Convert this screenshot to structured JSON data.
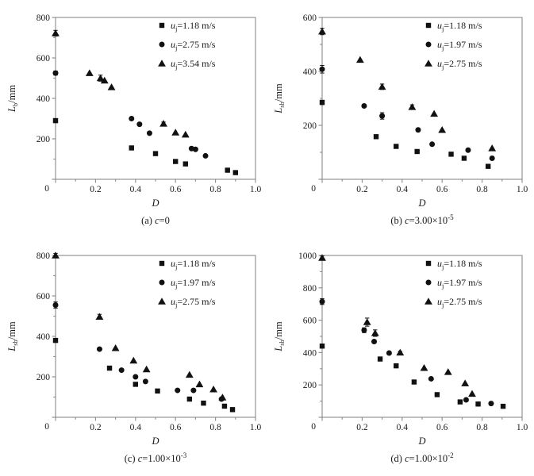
{
  "colors": {
    "background": "#ffffff",
    "axis": "#8a8a8a",
    "text": "#1a1a1a",
    "marker": "#111111"
  },
  "chart_data": [
    {
      "id": "a",
      "type": "scatter",
      "caption_label": "(a) ",
      "caption_var": "c",
      "caption_main": "=0",
      "caption_exp": "",
      "xlabel": "D",
      "ylabel": {
        "var": "L",
        "sub": "b",
        "unit": "/mm"
      },
      "xlim": [
        0,
        1.0
      ],
      "ylim": [
        0,
        800
      ],
      "xticks": [
        0,
        0.2,
        0.4,
        0.6,
        0.8,
        1.0
      ],
      "xtick_labels": [
        "",
        "0.2",
        "0.4",
        "0.6",
        "0.8",
        "1.0"
      ],
      "yticks": [
        0,
        200,
        400,
        600,
        800
      ],
      "ytick_labels": [
        "",
        "200",
        "400",
        "600",
        "800"
      ],
      "origin_label": "0",
      "legend_position": "top-right",
      "grid": false,
      "series": [
        {
          "marker": "square",
          "label_var": "u",
          "label_sub": "j",
          "label_value": "=1.18 m/s",
          "points": [
            [
              0,
              290,
              10
            ],
            [
              0.38,
              155,
              8
            ],
            [
              0.5,
              127
            ],
            [
              0.6,
              88
            ],
            [
              0.65,
              76
            ],
            [
              0.86,
              45
            ],
            [
              0.9,
              33
            ]
          ]
        },
        {
          "marker": "circle",
          "label_var": "u",
          "label_sub": "j",
          "label_value": "=2.75 m/s",
          "points": [
            [
              0,
              525,
              10
            ],
            [
              0.38,
              300
            ],
            [
              0.42,
              272
            ],
            [
              0.47,
              228
            ],
            [
              0.68,
              152
            ],
            [
              0.7,
              148
            ],
            [
              0.75,
              116
            ]
          ]
        },
        {
          "marker": "triangle",
          "label_var": "u",
          "label_sub": "j",
          "label_value": "=3.54 m/s",
          "points": [
            [
              0,
              722,
              14
            ],
            [
              0.17,
              525
            ],
            [
              0.225,
              500,
              15
            ],
            [
              0.245,
              488
            ],
            [
              0.28,
              455
            ],
            [
              0.54,
              275,
              8
            ],
            [
              0.6,
              231
            ],
            [
              0.65,
              221
            ]
          ]
        }
      ]
    },
    {
      "id": "b",
      "type": "scatter",
      "caption_label": "(b) ",
      "caption_var": "c",
      "caption_main": "=3.00×10",
      "caption_exp": "-5",
      "xlabel": "D",
      "ylabel": {
        "var": "L",
        "sub": "sb",
        "unit": "/mm"
      },
      "xlim": [
        0,
        1.0
      ],
      "ylim": [
        0,
        600
      ],
      "xticks": [
        0,
        0.2,
        0.4,
        0.6,
        0.8,
        1.0
      ],
      "xtick_labels": [
        "",
        "0.2",
        "0.4",
        "0.6",
        "0.8",
        "1.0"
      ],
      "yticks": [
        0,
        200,
        400,
        600
      ],
      "ytick_labels": [
        "",
        "200",
        "400",
        "600"
      ],
      "origin_label": "0",
      "legend_position": "top-right",
      "grid": false,
      "series": [
        {
          "marker": "square",
          "label_var": "u",
          "label_sub": "j",
          "label_value": "=1.18 m/s",
          "points": [
            [
              0,
              285,
              8
            ],
            [
              0.27,
              158
            ],
            [
              0.37,
              122
            ],
            [
              0.475,
              103
            ],
            [
              0.645,
              93
            ],
            [
              0.71,
              78
            ],
            [
              0.83,
              48
            ]
          ]
        },
        {
          "marker": "circle",
          "label_var": "u",
          "label_sub": "j",
          "label_value": "=1.97 m/s",
          "points": [
            [
              0,
              408,
              14
            ],
            [
              0.21,
              272
            ],
            [
              0.3,
              235,
              12
            ],
            [
              0.48,
              183
            ],
            [
              0.55,
              130
            ],
            [
              0.73,
              108
            ],
            [
              0.85,
              78
            ]
          ]
        },
        {
          "marker": "triangle",
          "label_var": "u",
          "label_sub": "j",
          "label_value": "=2.75 m/s",
          "points": [
            [
              0,
              548,
              12
            ],
            [
              0.19,
              443
            ],
            [
              0.3,
              343,
              10
            ],
            [
              0.45,
              268,
              8
            ],
            [
              0.56,
              243
            ],
            [
              0.6,
              183
            ],
            [
              0.85,
              115
            ]
          ]
        }
      ]
    },
    {
      "id": "c",
      "type": "scatter",
      "caption_label": "(c) ",
      "caption_var": "c",
      "caption_main": "=1.00×10",
      "caption_exp": "-3",
      "xlabel": "D",
      "ylabel": {
        "var": "L",
        "sub": "sb",
        "unit": "/mm"
      },
      "xlim": [
        0,
        1.0
      ],
      "ylim": [
        0,
        800
      ],
      "xticks": [
        0,
        0.2,
        0.4,
        0.6,
        0.8,
        1.0
      ],
      "xtick_labels": [
        "",
        "0.2",
        "0.4",
        "0.6",
        "0.8",
        "1.0"
      ],
      "yticks": [
        0,
        200,
        400,
        600,
        800
      ],
      "ytick_labels": [
        "",
        "200",
        "400",
        "600",
        "800"
      ],
      "origin_label": "0",
      "legend_position": "top-right",
      "grid": false,
      "series": [
        {
          "marker": "square",
          "label_var": "u",
          "label_sub": "j",
          "label_value": "=1.18 m/s",
          "points": [
            [
              0,
              380,
              8
            ],
            [
              0.27,
              243
            ],
            [
              0.4,
              163
            ],
            [
              0.51,
              130
            ],
            [
              0.67,
              90
            ],
            [
              0.74,
              70
            ],
            [
              0.845,
              55
            ],
            [
              0.885,
              38
            ]
          ]
        },
        {
          "marker": "circle",
          "label_var": "u",
          "label_sub": "j",
          "label_value": "=1.97 m/s",
          "points": [
            [
              0,
              555,
              15
            ],
            [
              0.22,
              337
            ],
            [
              0.33,
              233
            ],
            [
              0.4,
              200
            ],
            [
              0.45,
              177
            ],
            [
              0.61,
              133
            ],
            [
              0.69,
              133
            ],
            [
              0.83,
              90
            ]
          ]
        },
        {
          "marker": "triangle",
          "label_var": "u",
          "label_sub": "j",
          "label_value": "=2.75 m/s",
          "points": [
            [
              0,
              800,
              10
            ],
            [
              0.22,
              497,
              12
            ],
            [
              0.3,
              342
            ],
            [
              0.39,
              280
            ],
            [
              0.455,
              237
            ],
            [
              0.67,
              210
            ],
            [
              0.72,
              163
            ],
            [
              0.79,
              138
            ],
            [
              0.835,
              98
            ]
          ]
        }
      ]
    },
    {
      "id": "d",
      "type": "scatter",
      "caption_label": "(d) ",
      "caption_var": "c",
      "caption_main": "=1.00×10",
      "caption_exp": "-2",
      "xlabel": "D",
      "ylabel": {
        "var": "L",
        "sub": "sb",
        "unit": "/mm"
      },
      "xlim": [
        0,
        1.0
      ],
      "ylim": [
        0,
        1000
      ],
      "xticks": [
        0,
        0.2,
        0.4,
        0.6,
        0.8,
        1.0
      ],
      "xtick_labels": [
        "",
        "0.2",
        "0.4",
        "0.6",
        "0.8",
        "1.0"
      ],
      "yticks": [
        0,
        200,
        400,
        600,
        800,
        1000
      ],
      "ytick_labels": [
        "",
        "200",
        "400",
        "600",
        "800",
        "1000"
      ],
      "origin_label": "0",
      "legend_position": "top-right",
      "grid": false,
      "series": [
        {
          "marker": "square",
          "label_var": "u",
          "label_sub": "j",
          "label_value": "=1.18 m/s",
          "points": [
            [
              0,
              440
            ],
            [
              0.29,
              360
            ],
            [
              0.37,
              318
            ],
            [
              0.46,
              218
            ],
            [
              0.575,
              140
            ],
            [
              0.69,
              95
            ],
            [
              0.78,
              82
            ],
            [
              0.905,
              68
            ]
          ]
        },
        {
          "marker": "circle",
          "label_var": "u",
          "label_sub": "j",
          "label_value": "=1.97 m/s",
          "points": [
            [
              0,
              715,
              18
            ],
            [
              0.21,
              538,
              15
            ],
            [
              0.26,
              468,
              10
            ],
            [
              0.335,
              397
            ],
            [
              0.545,
              238
            ],
            [
              0.72,
              108
            ],
            [
              0.845,
              85
            ]
          ]
        },
        {
          "marker": "triangle",
          "label_var": "u",
          "label_sub": "j",
          "label_value": "=2.75 m/s",
          "points": [
            [
              0,
              985,
              12
            ],
            [
              0.225,
              588,
              25
            ],
            [
              0.265,
              520,
              20
            ],
            [
              0.39,
              400,
              8
            ],
            [
              0.51,
              305
            ],
            [
              0.63,
              280
            ],
            [
              0.715,
              210
            ],
            [
              0.75,
              145
            ]
          ]
        }
      ]
    }
  ]
}
